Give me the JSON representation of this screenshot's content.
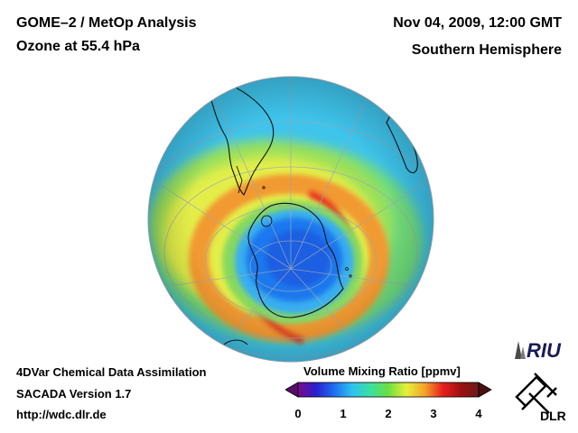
{
  "header": {
    "title_line1": "GOME–2 / MetOp Analysis",
    "title_line2": "Ozone at 55.4 hPa",
    "date": "Nov 04, 2009, 12:00 GMT",
    "region": "Southern Hemisphere"
  },
  "footer": {
    "line1": "4DVar Chemical Data Assimilation",
    "line2": "SACADA Version 1.7",
    "line3": "http://wdc.dlr.de"
  },
  "colorbar": {
    "title": "Volume Mixing Ratio [ppmv]",
    "ticks": [
      "0",
      "1",
      "2",
      "3",
      "4"
    ],
    "min": 0,
    "max": 4,
    "colors": [
      "#7a0a8a",
      "#2a1fd0",
      "#1e6ef0",
      "#2ec2f0",
      "#3be0a0",
      "#6be040",
      "#e6f03a",
      "#f5a52a",
      "#e82020",
      "#a01010",
      "#6a1a1a"
    ]
  },
  "logos": {
    "riu": "RIU",
    "dlr": "DLR"
  }
}
